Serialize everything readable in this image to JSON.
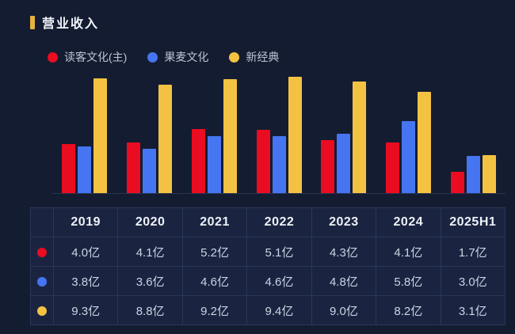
{
  "header": {
    "title": "营业收入"
  },
  "colors": {
    "background": "#141c31",
    "accent_gold": "#e6b33f",
    "red": "#ea0c20",
    "blue": "#4575f0",
    "yellow": "#f3c242",
    "table_border": "#2a3758",
    "table_cell_bg": "#1a2440"
  },
  "legend": [
    {
      "label": "读客文化(主)",
      "color": "#ea0c20"
    },
    {
      "label": "果麦文化",
      "color": "#4575f0"
    },
    {
      "label": "新经典",
      "color": "#f3c242"
    }
  ],
  "chart_data": {
    "type": "bar",
    "title": "营业收入",
    "unit": "亿",
    "categories": [
      "2019",
      "2020",
      "2021",
      "2022",
      "2023",
      "2024",
      "2025H1"
    ],
    "series": [
      {
        "name": "读客文化(主)",
        "color": "#ea0c20",
        "values": [
          4.0,
          4.1,
          5.2,
          5.1,
          4.3,
          4.1,
          1.7
        ]
      },
      {
        "name": "果麦文化",
        "color": "#4575f0",
        "values": [
          3.8,
          3.6,
          4.6,
          4.6,
          4.8,
          5.8,
          3.0
        ]
      },
      {
        "name": "新经典",
        "color": "#f3c242",
        "values": [
          9.3,
          8.8,
          9.2,
          9.4,
          9.0,
          8.2,
          3.1
        ]
      }
    ],
    "ylim": [
      0,
      9.6
    ],
    "grid": false,
    "legend_position": "top",
    "xlabel": "",
    "ylabel": ""
  },
  "table": {
    "headers": [
      "2019",
      "2020",
      "2021",
      "2022",
      "2023",
      "2024",
      "2025H1"
    ],
    "rows": [
      {
        "series": "读客文化(主)",
        "color": "#ea0c20",
        "values": [
          "4.0亿",
          "4.1亿",
          "5.2亿",
          "5.1亿",
          "4.3亿",
          "4.1亿",
          "1.7亿"
        ]
      },
      {
        "series": "果麦文化",
        "color": "#4575f0",
        "values": [
          "3.8亿",
          "3.6亿",
          "4.6亿",
          "4.6亿",
          "4.8亿",
          "5.8亿",
          "3.0亿"
        ]
      },
      {
        "series": "新经典",
        "color": "#f3c242",
        "values": [
          "9.3亿",
          "8.8亿",
          "9.2亿",
          "9.4亿",
          "9.0亿",
          "8.2亿",
          "3.1亿"
        ]
      }
    ]
  }
}
